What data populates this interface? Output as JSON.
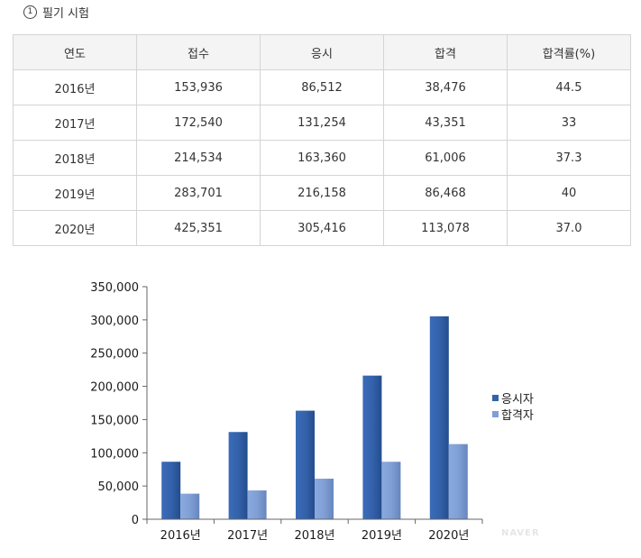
{
  "section": {
    "number": "1",
    "title": "필기 시험"
  },
  "table": {
    "headers": [
      "연도",
      "접수",
      "응시",
      "합격",
      "합격률(%)"
    ],
    "rows": [
      [
        "2016년",
        "153,936",
        "86,512",
        "38,476",
        "44.5"
      ],
      [
        "2017년",
        "172,540",
        "131,254",
        "43,351",
        "33"
      ],
      [
        "2018년",
        "214,534",
        "163,360",
        "61,006",
        "37.3"
      ],
      [
        "2019년",
        "283,701",
        "216,158",
        "86,468",
        "40"
      ],
      [
        "2020년",
        "425,351",
        "305,416",
        "113,078",
        "37.0"
      ]
    ]
  },
  "chart_data": {
    "type": "bar",
    "categories": [
      "2016년",
      "2017년",
      "2018년",
      "2019년",
      "2020년"
    ],
    "series": [
      {
        "name": "응시자",
        "values": [
          86512,
          131254,
          163360,
          216158,
          305416
        ],
        "color": "#3462ab"
      },
      {
        "name": "합격자",
        "values": [
          38476,
          43351,
          61006,
          86468,
          113078
        ],
        "color": "#7f9fd6"
      }
    ],
    "ylim": [
      0,
      350000
    ],
    "yticks": [
      "0",
      "50,000",
      "100,000",
      "150,000",
      "200,000",
      "250,000",
      "300,000",
      "350,000"
    ],
    "legend_position": "right",
    "grid": false
  },
  "watermark": "NAVER"
}
